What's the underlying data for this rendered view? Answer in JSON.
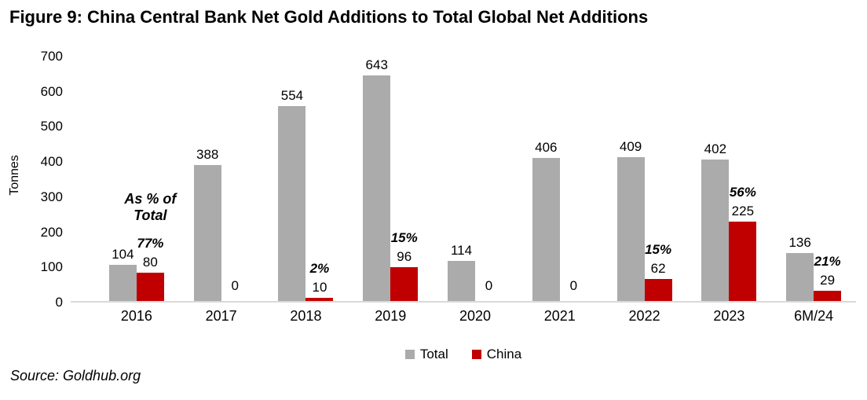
{
  "title": "Figure 9: China Central Bank Net Gold Additions to Total Global Net Additions",
  "source": "Source: Goldhub.org",
  "colors": {
    "total": "#ABABAB",
    "china": "#C00000",
    "axis_line": "#D9D9D9",
    "text": "#000000"
  },
  "chart_data": {
    "type": "bar",
    "title": "Figure 9: China Central Bank Net Gold Additions to Total Global Net Additions",
    "ylabel": "Tonnes",
    "xlabel": "",
    "ylim": [
      0,
      700
    ],
    "yticks": [
      0,
      100,
      200,
      300,
      400,
      500,
      600,
      700
    ],
    "grid": false,
    "legend_position": "bottom",
    "categories": [
      "2016",
      "2017",
      "2018",
      "2019",
      "2020",
      "2021",
      "2022",
      "2023",
      "6M/24"
    ],
    "series": [
      {
        "name": "Total",
        "color": "#ABABAB",
        "values": [
          104,
          388,
          554,
          643,
          114,
          406,
          409,
          402,
          136
        ]
      },
      {
        "name": "China",
        "color": "#C00000",
        "values": [
          80,
          0,
          10,
          96,
          0,
          0,
          62,
          225,
          29
        ]
      }
    ],
    "pct_labels": [
      "77%",
      "",
      "2%",
      "15%",
      "",
      "",
      "15%",
      "56%",
      "21%"
    ],
    "annotation_lines": [
      "As % of",
      "Total"
    ],
    "annotation_category": "2016"
  },
  "legend": {
    "items": [
      {
        "label": "Total",
        "color": "#ABABAB"
      },
      {
        "label": "China",
        "color": "#C00000"
      }
    ]
  }
}
